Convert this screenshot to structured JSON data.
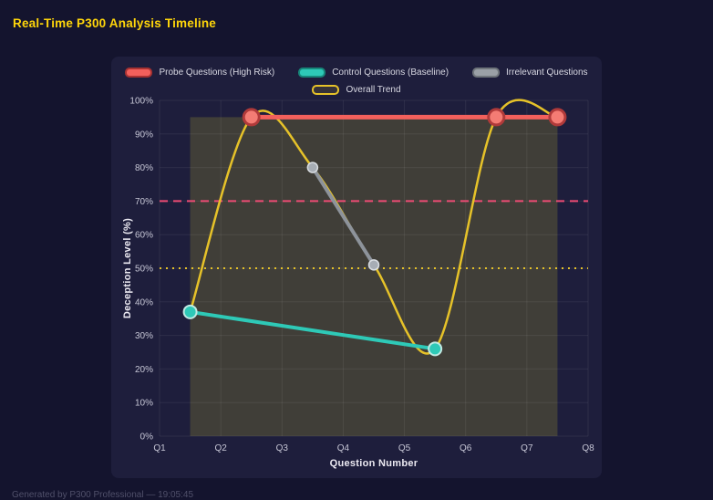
{
  "page": {
    "title": "Real-Time P300 Analysis Timeline",
    "footer": "Generated by P300 Professional — 19:05:45"
  },
  "chart_data": {
    "type": "line",
    "title": "Real-Time P300 Analysis Timeline",
    "xlabel": "Question Number",
    "ylabel": "Deception Level (%)",
    "x_range": [
      1,
      8
    ],
    "y_range": [
      0,
      100
    ],
    "y_tick_step": 10,
    "y_tick_suffix": "%",
    "x_tick_values": [
      1,
      2,
      3,
      4,
      5,
      6,
      7,
      8
    ],
    "x_tick_labels": [
      "Q1",
      "Q2",
      "Q3",
      "Q4",
      "Q5",
      "Q6",
      "Q7",
      "Q8"
    ],
    "grid": true,
    "legend_position": "top",
    "series": [
      {
        "name": "Probe Questions (High Risk)",
        "x": [
          2.5,
          6.5,
          7.5
        ],
        "y": [
          95,
          95,
          95
        ],
        "color": "#f2605c",
        "line_width": 5,
        "smooth": false,
        "marker": {
          "radius": 8.5,
          "fill": "#f47c74",
          "stroke": "#b03a3a",
          "stroke_width": 3
        },
        "swatch_fill": "#f2605c",
        "swatch_border": "#a83232"
      },
      {
        "name": "Control Questions (Baseline)",
        "x": [
          1.5,
          5.5
        ],
        "y": [
          37,
          26
        ],
        "color": "#2ec9b7",
        "line_width": 4,
        "smooth": false,
        "marker": {
          "radius": 7,
          "fill": "#2ec9b7",
          "stroke": "#bfe9e2",
          "stroke_width": 2
        },
        "swatch_fill": "#2ec9b7",
        "swatch_border": "#17877a"
      },
      {
        "name": "Irrelevant Questions",
        "x": [
          3.5,
          4.5
        ],
        "y": [
          80,
          51
        ],
        "color": "#8d939b",
        "line_width": 4,
        "smooth": false,
        "marker": {
          "radius": 5.5,
          "fill": "#a7adb5",
          "stroke": "#d9dde2",
          "stroke_width": 1.5
        },
        "swatch_fill": "#9aa0a6",
        "swatch_border": "#6f757b"
      },
      {
        "name": "Overall Trend",
        "x": [
          1.5,
          2.5,
          3.5,
          4.5,
          5.5,
          6.5,
          7.5
        ],
        "y": [
          37,
          95,
          80,
          51,
          26,
          95,
          95
        ],
        "color": "#e6c229",
        "line_width": 2.5,
        "smooth": true,
        "marker": null,
        "swatch_fill": "rgba(230,194,41,0.12)",
        "swatch_border": "#e6c229"
      }
    ],
    "thresholds": [
      {
        "y": 70,
        "color": "#ed4c74",
        "style": "dashed"
      },
      {
        "y": 50,
        "color": "#e6c229",
        "style": "dotted"
      }
    ],
    "shaded_region": {
      "x0": 1.5,
      "x1": 7.5,
      "y0": 0,
      "y1": 95,
      "color": "rgba(168,160,45,0.25)"
    }
  }
}
